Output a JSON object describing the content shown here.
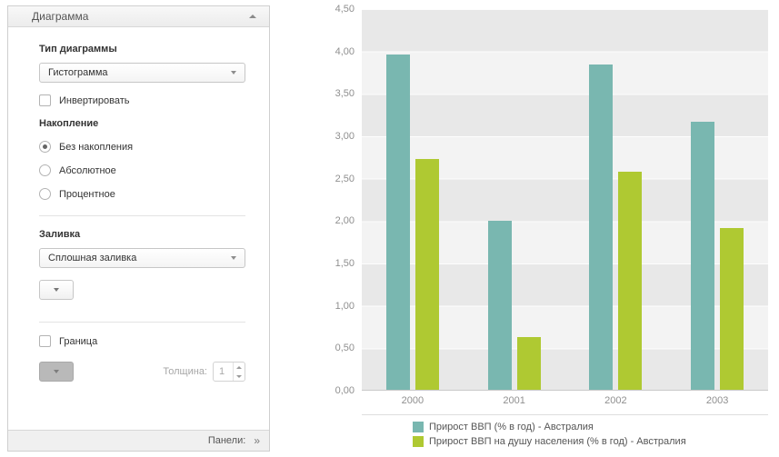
{
  "panel": {
    "title": "Диаграмма",
    "type_label": "Тип диаграммы",
    "type_value": "Гистограмма",
    "invert_label": "Инвертировать",
    "stacking_label": "Накопление",
    "stacking_options": [
      {
        "label": "Без накопления",
        "selected": true
      },
      {
        "label": "Абсолютное",
        "selected": false
      },
      {
        "label": "Процентное",
        "selected": false
      }
    ],
    "fill_label": "Заливка",
    "fill_value": "Сплошная заливка",
    "border_label": "Граница",
    "thickness_label": "Толщина:",
    "thickness_value": "1",
    "footer_label": "Панели:",
    "footer_chevrons": "»"
  },
  "chart_data": {
    "type": "bar",
    "categories": [
      "2000",
      "2001",
      "2002",
      "2003"
    ],
    "series": [
      {
        "name": "Прирост ВВП (% в год) - Австралия",
        "color": "#79b7b0",
        "values": [
          3.96,
          2.0,
          3.85,
          3.17
        ]
      },
      {
        "name": "Прирост ВВП на душу населения (% в год) - Австралия",
        "color": "#afc932",
        "values": [
          2.73,
          0.62,
          2.58,
          1.91
        ]
      }
    ],
    "y_ticks": [
      "4,50",
      "4,00",
      "3,50",
      "3,00",
      "2,50",
      "2,00",
      "1,50",
      "1,00",
      "0,50",
      "0,00"
    ],
    "ylim": [
      0,
      4.5
    ],
    "legend_position": "bottom",
    "grid": "horizontal-bands"
  }
}
